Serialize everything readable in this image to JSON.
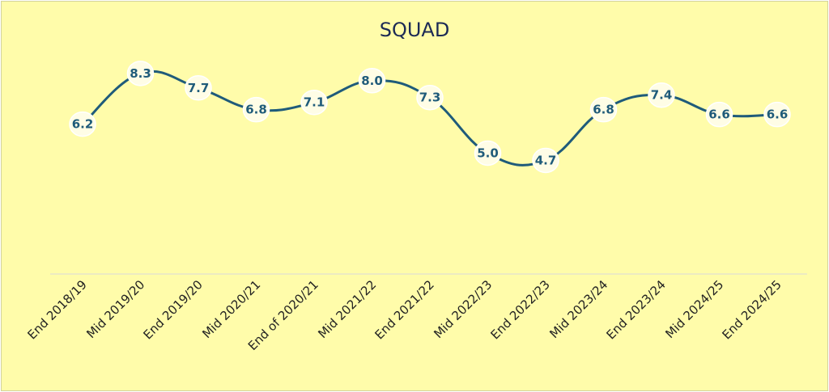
{
  "chart_data": {
    "type": "line",
    "title": "SQUAD",
    "categories": [
      "End 2018/19",
      "Mid 2019/20",
      "End 2019/20",
      "Mid 2020/21",
      "End of 2020/21",
      "Mid 2021/22",
      "End 2021/22",
      "Mid 2022/23",
      "End 2022/23",
      "Mid 2023/24",
      "End 2023/24",
      "Mid 2024/25",
      "End 2024/25"
    ],
    "values": [
      6.2,
      8.3,
      7.7,
      6.8,
      7.1,
      8.0,
      7.3,
      5.0,
      4.7,
      6.8,
      7.4,
      6.6,
      6.6
    ],
    "value_labels": [
      "6.2",
      "8.3",
      "7.7",
      "6.8",
      "7.1",
      "8.0",
      "7.3",
      "5.0",
      "4.7",
      "6.8",
      "7.4",
      "6.6",
      "6.6"
    ],
    "ylim": [
      0,
      10
    ],
    "xlabel": "",
    "ylabel": "",
    "grid": false,
    "legend": "none",
    "colors": {
      "background": "#fffcaa",
      "line": "#1f5b7a",
      "label": "#1f5b7a",
      "axis": "#d9d9d9",
      "title": "#1c2a55"
    }
  }
}
